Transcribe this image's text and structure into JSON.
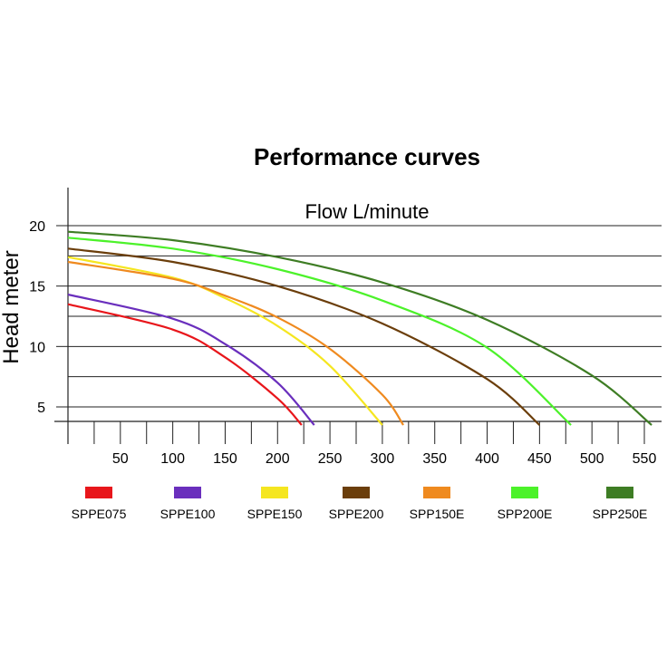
{
  "chart_data": {
    "type": "line",
    "title": "Performance curves",
    "xlabel": "Flow L/minute",
    "ylabel": "Head meter",
    "xlim": [
      0,
      560
    ],
    "ylim": [
      3.5,
      23
    ],
    "x_ticks": [
      "50",
      "100",
      "150",
      "200",
      "250",
      "300",
      "350",
      "400",
      "450",
      "500",
      "550"
    ],
    "y_ticks": [
      "5",
      "10",
      "15",
      "20"
    ],
    "grid": "horizontal",
    "legend_position": "bottom",
    "series": [
      {
        "name": "SPPE075",
        "color": "#e8161b",
        "x": [
          0,
          100,
          150,
          200,
          223
        ],
        "y": [
          13.5,
          11.4,
          9.1,
          5.7,
          3.5
        ]
      },
      {
        "name": "SPPE100",
        "color": "#6a2fbd",
        "x": [
          0,
          100,
          150,
          200,
          235
        ],
        "y": [
          14.3,
          12.3,
          10.2,
          7.0,
          3.5
        ]
      },
      {
        "name": "SPPE150",
        "color": "#f5e620",
        "x": [
          0,
          100,
          150,
          200,
          250,
          300
        ],
        "y": [
          17.4,
          15.7,
          14.0,
          11.7,
          8.4,
          3.5
        ]
      },
      {
        "name": "SPPE200",
        "color": "#6b3e0b",
        "x": [
          0,
          100,
          200,
          300,
          400,
          450
        ],
        "y": [
          18.1,
          17.0,
          15.0,
          11.9,
          7.3,
          3.5
        ]
      },
      {
        "name": "SPP150E",
        "color": "#ef8a1f",
        "x": [
          0,
          100,
          150,
          200,
          250,
          300,
          320
        ],
        "y": [
          17.0,
          15.6,
          14.2,
          12.4,
          9.8,
          6.0,
          3.5
        ]
      },
      {
        "name": "SPP200E",
        "color": "#4cf22a",
        "x": [
          0,
          100,
          200,
          300,
          400,
          480
        ],
        "y": [
          19.0,
          18.1,
          16.4,
          13.8,
          9.9,
          3.5
        ]
      },
      {
        "name": "SPP250E",
        "color": "#3e7d24",
        "x": [
          0,
          100,
          200,
          300,
          400,
          500,
          557
        ],
        "y": [
          19.5,
          18.8,
          17.4,
          15.3,
          12.2,
          7.6,
          3.5
        ]
      }
    ]
  }
}
